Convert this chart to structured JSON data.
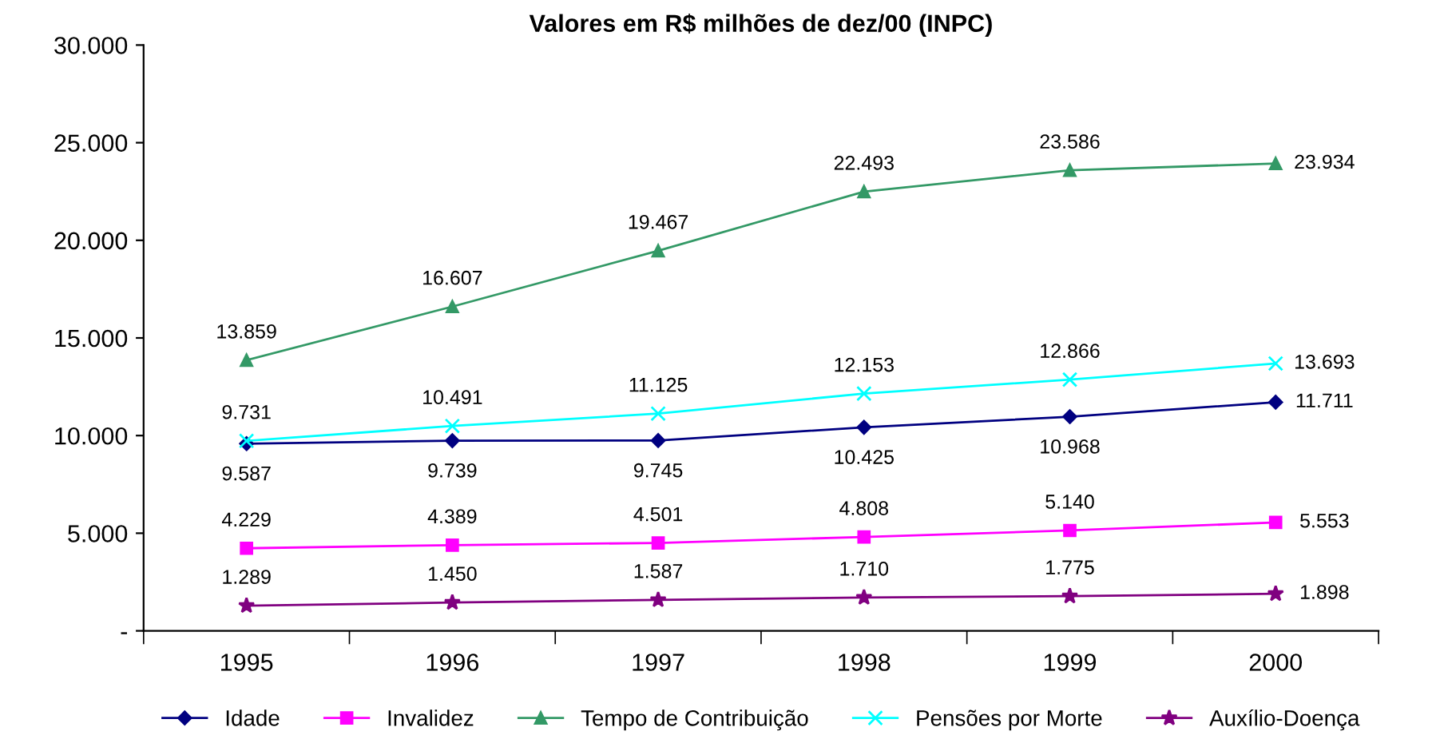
{
  "chart_data": {
    "type": "line",
    "title": "Valores em R$ milhões de dez/00 (INPC)",
    "categories": [
      "1995",
      "1996",
      "1997",
      "1998",
      "1999",
      "2000"
    ],
    "series": [
      {
        "name": "Idade",
        "color": "#000080",
        "marker": "diamond",
        "values": [
          9587,
          9739,
          9745,
          10425,
          10968,
          11711
        ],
        "value_labels": [
          "9.587",
          "9.739",
          "9.745",
          "10.425",
          "10.968",
          "11.711"
        ]
      },
      {
        "name": "Invalidez",
        "color": "#ff00ff",
        "marker": "square",
        "values": [
          4229,
          4389,
          4501,
          4808,
          5140,
          5553
        ],
        "value_labels": [
          "4.229",
          "4.389",
          "4.501",
          "4.808",
          "5.140",
          "5.553"
        ]
      },
      {
        "name": "Tempo de Contribuição",
        "color": "#339966",
        "marker": "triangle",
        "values": [
          13859,
          16607,
          19467,
          22493,
          23586,
          23934
        ],
        "value_labels": [
          "13.859",
          "16.607",
          "19.467",
          "22.493",
          "23.586",
          "23.934"
        ]
      },
      {
        "name": "Pensões por Morte",
        "color": "#00ffff",
        "marker": "cross",
        "values": [
          9731,
          10491,
          11125,
          12153,
          12866,
          13693
        ],
        "value_labels": [
          "9.731",
          "10.491",
          "11.125",
          "12.153",
          "12.866",
          "13.693"
        ]
      },
      {
        "name": "Auxílio-Doença",
        "color": "#800080",
        "marker": "star",
        "values": [
          1289,
          1450,
          1587,
          1710,
          1775,
          1898
        ],
        "value_labels": [
          "1.289",
          "1.450",
          "1.587",
          "1.710",
          "1.775",
          "1.898"
        ]
      }
    ],
    "ylim": [
      0,
      30000
    ],
    "yticks": [
      {
        "value": 0,
        "label": "-"
      },
      {
        "value": 5000,
        "label": "5.000"
      },
      {
        "value": 10000,
        "label": "10.000"
      },
      {
        "value": 15000,
        "label": "15.000"
      },
      {
        "value": 20000,
        "label": "20.000"
      },
      {
        "value": 25000,
        "label": "25.000"
      },
      {
        "value": 30000,
        "label": "30.000"
      }
    ],
    "grid": false,
    "legend": "bottom",
    "line_style": "solid"
  }
}
